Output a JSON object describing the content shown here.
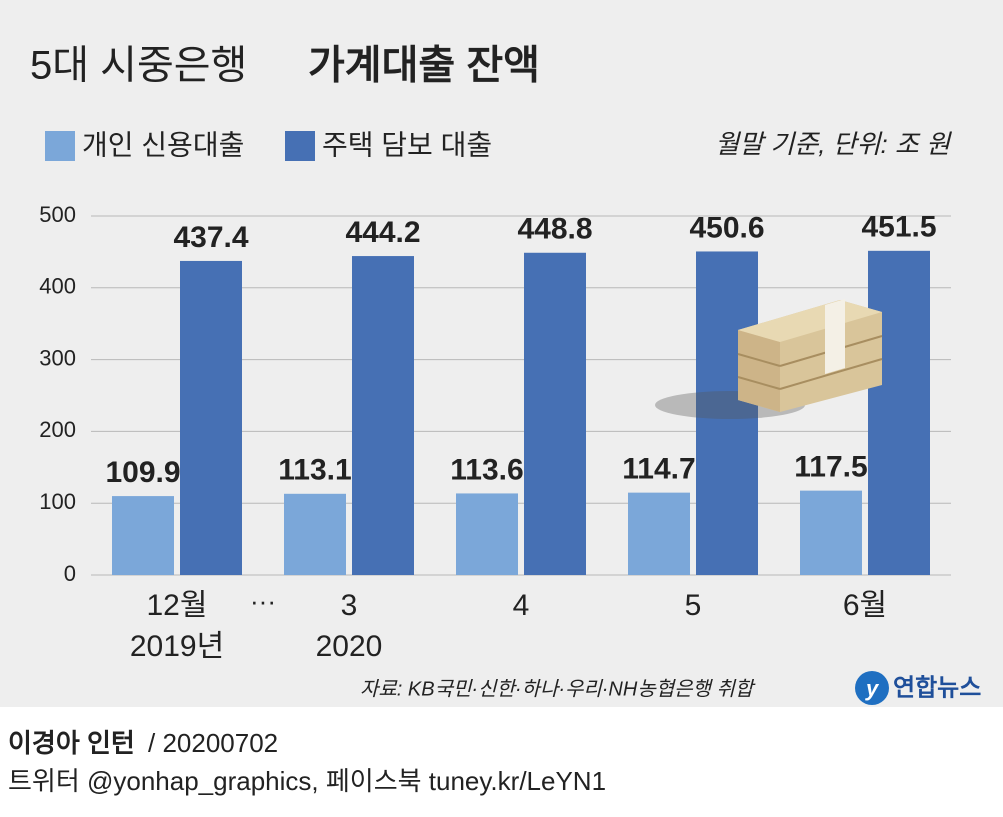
{
  "chart_data": {
    "type": "bar",
    "title_parts": [
      "5대 시중은행",
      "가계대출 잔액"
    ],
    "note": "월말 기준, 단위: 조 원",
    "source": "자료: KB국민·신한·하나·우리·NH농협은행 취합",
    "categories": [
      "12월",
      "3",
      "4",
      "5",
      "6월"
    ],
    "category_years": [
      "2019년",
      "2020",
      null,
      null,
      null
    ],
    "separator": "···",
    "series": [
      {
        "name": "개인 신용대출",
        "color": "#7ba7d9",
        "values": [
          109.9,
          113.1,
          113.6,
          114.7,
          117.5
        ]
      },
      {
        "name": "주택 담보 대출",
        "color": "#4670b4",
        "values": [
          437.4,
          444.2,
          448.8,
          450.6,
          451.5
        ]
      }
    ],
    "ylim": [
      0,
      500
    ],
    "yticks": [
      0,
      100,
      200,
      300,
      400,
      500
    ],
    "grid": true,
    "legend": "top-left"
  },
  "branding": {
    "logo": "연합뉴스"
  },
  "footer": {
    "author": "이경아 인턴",
    "date": "/ 20200702",
    "social": "트위터 @yonhap_graphics, 페이스북 tuney.kr/LeYN1"
  }
}
